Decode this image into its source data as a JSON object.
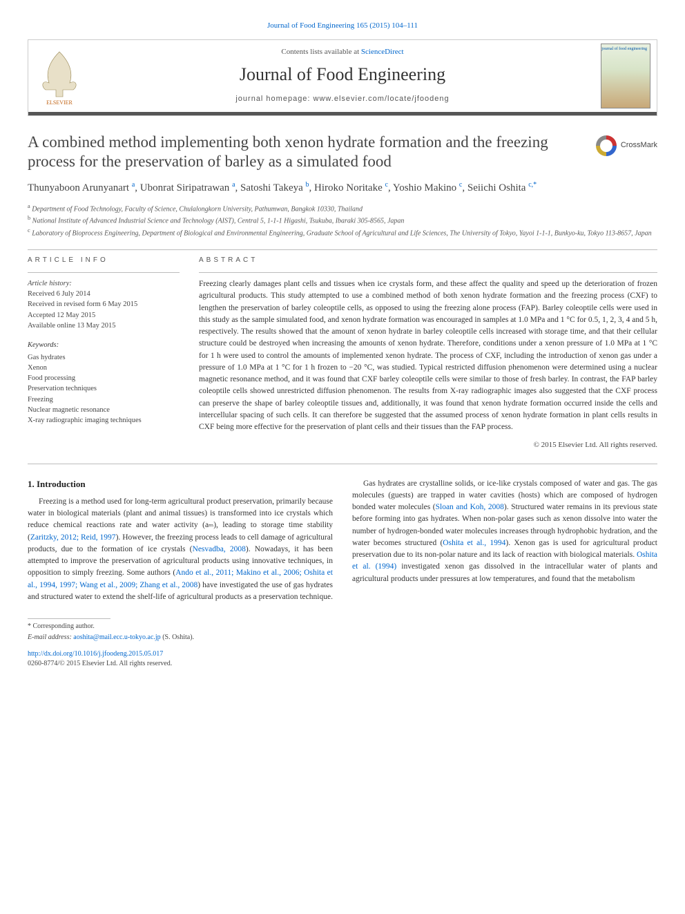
{
  "citation": "Journal of Food Engineering 165 (2015) 104–111",
  "header": {
    "contents_prefix": "Contents lists available at ",
    "contents_link": "ScienceDirect",
    "journal_title": "Journal of Food Engineering",
    "homepage_prefix": "journal homepage: ",
    "homepage_url": "www.elsevier.com/locate/jfoodeng",
    "publisher": "ELSEVIER",
    "cover_label": "journal of\nfood engineering"
  },
  "crossmark_label": "CrossMark",
  "title": "A combined method implementing both xenon hydrate formation and the freezing process for the preservation of barley as a simulated food",
  "authors_html": "Thunyaboon Arunyanart <sup>a</sup>, Ubonrat Siripatrawan <sup>a</sup>, Satoshi Takeya <sup>b</sup>, Hiroko Noritake <sup>c</sup>, Yoshio Makino <sup>c</sup>, Seiichi Oshita <sup>c,*</sup>",
  "affiliations": {
    "a": "Department of Food Technology, Faculty of Science, Chulalongkorn University, Pathumwan, Bangkok 10330, Thailand",
    "b": "National Institute of Advanced Industrial Science and Technology (AIST), Central 5, 1-1-1 Higashi, Tsukuba, Ibaraki 305-8565, Japan",
    "c": "Laboratory of Bioprocess Engineering, Department of Biological and Environmental Engineering, Graduate School of Agricultural and Life Sciences, The University of Tokyo, Yayoi 1-1-1, Bunkyo-ku, Tokyo 113-8657, Japan"
  },
  "info": {
    "label": "ARTICLE INFO",
    "history_head": "Article history:",
    "history": [
      "Received 6 July 2014",
      "Received in revised form 6 May 2015",
      "Accepted 12 May 2015",
      "Available online 13 May 2015"
    ],
    "keywords_head": "Keywords:",
    "keywords": [
      "Gas hydrates",
      "Xenon",
      "Food processing",
      "Preservation techniques",
      "Freezing",
      "Nuclear magnetic resonance",
      "X-ray radiographic imaging techniques"
    ]
  },
  "abstract": {
    "label": "ABSTRACT",
    "text": "Freezing clearly damages plant cells and tissues when ice crystals form, and these affect the quality and speed up the deterioration of frozen agricultural products. This study attempted to use a combined method of both xenon hydrate formation and the freezing process (CXF) to lengthen the preservation of barley coleoptile cells, as opposed to using the freezing alone process (FAP). Barley coleoptile cells were used in this study as the sample simulated food, and xenon hydrate formation was encouraged in samples at 1.0 MPa and 1 °C for 0.5, 1, 2, 3, 4 and 5 h, respectively. The results showed that the amount of xenon hydrate in barley coleoptile cells increased with storage time, and that their cellular structure could be destroyed when increasing the amounts of xenon hydrate. Therefore, conditions under a xenon pressure of 1.0 MPa at 1 °C for 1 h were used to control the amounts of implemented xenon hydrate. The process of CXF, including the introduction of xenon gas under a pressure of 1.0 MPa at 1 °C for 1 h frozen to −20 °C, was studied. Typical restricted diffusion phenomenon were determined using a nuclear magnetic resonance method, and it was found that CXF barley coleoptile cells were similar to those of fresh barley. In contrast, the FAP barley coleoptile cells showed unrestricted diffusion phenomenon. The results from X-ray radiographic images also suggested that the CXF process can preserve the shape of barley coleoptile tissues and, additionally, it was found that xenon hydrate formation occurred inside the cells and intercellular spacing of such cells. It can therefore be suggested that the assumed process of xenon hydrate formation in plant cells results in CXF being more effective for the preservation of plant cells and their tissues than the FAP process.",
    "copyright": "© 2015 Elsevier Ltd. All rights reserved."
  },
  "body": {
    "section_heading": "1. Introduction",
    "p1_pre": "Freezing is a method used for long-term agricultural product preservation, primarily because water in biological materials (plant and animal tissues) is transformed into ice crystals which reduce chemical reactions rate and water activity (aₘ), leading to storage time stability (",
    "p1_ref1": "Zaritzky, 2012; Reid, 1997",
    "p1_mid1": "). However, the freezing process leads to cell damage of agricultural products, due to the formation of ice crystals (",
    "p1_ref2": "Nesvadba, 2008",
    "p1_mid2": "). Nowadays, it has been attempted to improve the preservation of agricultural products using innovative techniques, in opposition to simply freezing. Some authors (",
    "p1_ref3": "Ando et al., 2011; Makino et al., 2006; Oshita et al., 1994, 1997; Wang et al., 2009; Zhang et al., 2008",
    "p1_post": ") have investigated the use of gas hydrates and structured water to extend the shelf-life of agricultural products as a preservation technique.",
    "p2_pre": "Gas hydrates are crystalline solids, or ice-like crystals composed of water and gas. The gas molecules (guests) are trapped in water cavities (hosts) which are composed of hydrogen bonded water molecules (",
    "p2_ref1": "Sloan and Koh, 2008",
    "p2_mid1": "). Structured water remains in its previous state before forming into gas hydrates. When non-polar gases such as xenon dissolve into water the number of hydrogen-bonded water molecules increases through hydrophobic hydration, and the water becomes structured (",
    "p2_ref2": "Oshita et al., 1994",
    "p2_mid2": "). Xenon gas is used for agricultural product preservation due to its non-polar nature and its lack of reaction with biological materials. ",
    "p2_ref3": "Oshita et al. (1994)",
    "p2_post": " investigated xenon gas dissolved in the intracellular water of plants and agricultural products under pressures at low temperatures, and found that the metabolism"
  },
  "footer": {
    "corresponding": "* Corresponding author.",
    "email_label": "E-mail address: ",
    "email": "aoshita@mail.ecc.u-tokyo.ac.jp",
    "email_suffix": " (S. Oshita).",
    "doi": "http://dx.doi.org/10.1016/j.jfoodeng.2015.05.017",
    "issn_line": "0260-8774/© 2015 Elsevier Ltd. All rights reserved."
  },
  "colors": {
    "link": "#0066cc",
    "rule": "#555555",
    "text": "#333333",
    "muted": "#555555",
    "border": "#bbbbbb"
  }
}
